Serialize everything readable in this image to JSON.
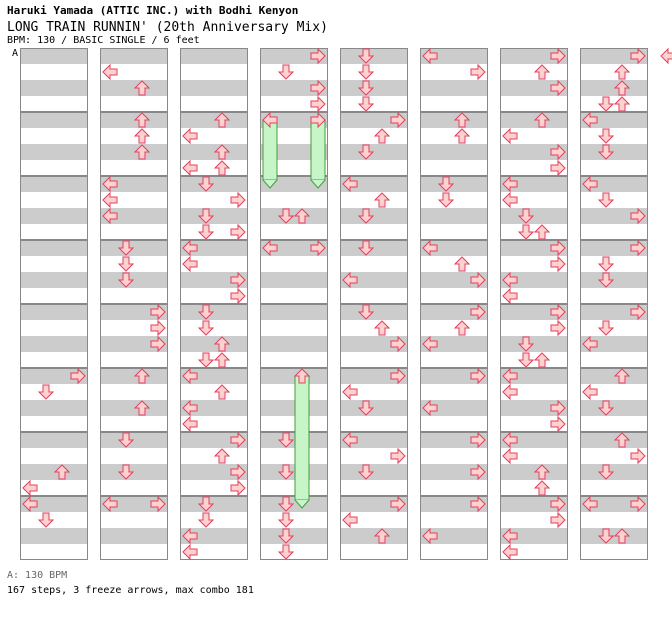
{
  "header": {
    "artist": "Haruki Yamada (ATTIC INC.) with Bodhi Kenyon",
    "title": "LONG TRAIN RUNNIN' (20th Anniversary Mix)",
    "meta": "BPM: 130 / BASIC SINGLE / 6 feet",
    "bpm_marker": "A"
  },
  "footer": {
    "bpm_legend": "A: 130 BPM",
    "stats": "167 steps, 3 freeze arrows, max combo 181"
  },
  "colors": {
    "arrow_fill": "#ffd0d0",
    "arrow_stroke": "#e0405a",
    "freeze_fill": "#c8f5c8",
    "freeze_stroke": "#40a040",
    "stripe_gray": "#cccccc",
    "bpm_line": "#3b82f6"
  },
  "columns": [
    {
      "measures": [
        [],
        [],
        [],
        [],
        [],
        [
          [
            0,
            "right"
          ],
          [
            1,
            "down"
          ]
        ],
        [
          [
            2,
            "up"
          ],
          [
            3,
            "left"
          ]
        ],
        [
          [
            0,
            "left"
          ],
          [
            1,
            "down"
          ]
        ]
      ]
    },
    {
      "measures": [
        [
          [
            1,
            "left"
          ],
          [
            2,
            "up"
          ]
        ],
        [
          [
            0,
            "up"
          ],
          [
            1,
            "up"
          ],
          [
            2,
            "up"
          ]
        ],
        [
          [
            0,
            "left"
          ],
          [
            1,
            "left"
          ],
          [
            2,
            "left"
          ]
        ],
        [
          [
            0,
            "down"
          ],
          [
            1,
            "down"
          ],
          [
            2,
            "down"
          ]
        ],
        [
          [
            0,
            "right"
          ],
          [
            1,
            "right"
          ],
          [
            2,
            "right"
          ]
        ],
        [
          [
            0,
            "up"
          ],
          [
            2,
            "up"
          ]
        ],
        [
          [
            0,
            "down"
          ],
          [
            2,
            "down"
          ]
        ],
        [
          [
            0,
            "left"
          ],
          [
            0,
            "right"
          ]
        ]
      ]
    },
    {
      "measures": [
        [],
        [
          [
            0,
            "up"
          ],
          [
            1,
            "left"
          ],
          [
            2,
            "up"
          ],
          [
            3,
            "left"
          ],
          [
            3,
            "up"
          ]
        ],
        [
          [
            0,
            "down"
          ],
          [
            1,
            "right"
          ],
          [
            2,
            "down"
          ],
          [
            3,
            "down"
          ],
          [
            3,
            "right"
          ]
        ],
        [
          [
            0,
            "left"
          ],
          [
            1,
            "left"
          ],
          [
            2,
            "right"
          ],
          [
            3,
            "right"
          ]
        ],
        [
          [
            0,
            "down"
          ],
          [
            1,
            "down"
          ],
          [
            2,
            "up"
          ],
          [
            3,
            "down"
          ],
          [
            3,
            "up"
          ]
        ],
        [
          [
            0,
            "left"
          ],
          [
            1,
            "up"
          ],
          [
            2,
            "left"
          ],
          [
            3,
            "left"
          ]
        ],
        [
          [
            0,
            "right"
          ],
          [
            1,
            "up"
          ],
          [
            2,
            "right"
          ],
          [
            3,
            "right"
          ]
        ],
        [
          [
            0,
            "down"
          ],
          [
            1,
            "down"
          ],
          [
            2,
            "left"
          ],
          [
            3,
            "left"
          ]
        ]
      ]
    },
    {
      "measures": [
        [
          [
            0,
            "right"
          ],
          [
            1,
            "down"
          ],
          [
            2,
            "right"
          ],
          [
            3,
            "right"
          ]
        ],
        [
          [
            0,
            "left"
          ],
          [
            0,
            "right"
          ]
        ],
        [
          [
            2,
            "down"
          ],
          [
            2,
            "up"
          ]
        ],
        [
          [
            0,
            "left"
          ],
          [
            0,
            "right"
          ]
        ],
        [],
        [
          [
            0,
            "up"
          ]
        ],
        [
          [
            0,
            "down"
          ],
          [
            2,
            "down"
          ]
        ],
        [
          [
            0,
            "down"
          ],
          [
            1,
            "down"
          ],
          [
            2,
            "down"
          ],
          [
            3,
            "down"
          ]
        ]
      ]
    },
    {
      "measures": [
        [
          [
            0,
            "down"
          ],
          [
            1,
            "down"
          ],
          [
            2,
            "down"
          ],
          [
            3,
            "down"
          ]
        ],
        [
          [
            0,
            "right"
          ],
          [
            1,
            "up"
          ],
          [
            2,
            "down"
          ]
        ],
        [
          [
            0,
            "left"
          ],
          [
            1,
            "up"
          ],
          [
            2,
            "down"
          ]
        ],
        [
          [
            0,
            "down"
          ],
          [
            2,
            "left"
          ]
        ],
        [
          [
            0,
            "down"
          ],
          [
            1,
            "up"
          ],
          [
            2,
            "right"
          ]
        ],
        [
          [
            0,
            "right"
          ],
          [
            1,
            "left"
          ],
          [
            2,
            "down"
          ]
        ],
        [
          [
            0,
            "left"
          ],
          [
            1,
            "right"
          ],
          [
            2,
            "down"
          ]
        ],
        [
          [
            0,
            "right"
          ],
          [
            1,
            "left"
          ],
          [
            2,
            "up"
          ]
        ]
      ]
    },
    {
      "measures": [
        [
          [
            0,
            "left"
          ],
          [
            1,
            "right"
          ]
        ],
        [
          [
            0,
            "up"
          ],
          [
            1,
            "up"
          ]
        ],
        [
          [
            0,
            "down"
          ],
          [
            1,
            "down"
          ]
        ],
        [
          [
            0,
            "left"
          ],
          [
            1,
            "up"
          ],
          [
            2,
            "right"
          ]
        ],
        [
          [
            0,
            "right"
          ],
          [
            1,
            "up"
          ],
          [
            2,
            "left"
          ]
        ],
        [
          [
            0,
            "right"
          ],
          [
            2,
            "left"
          ]
        ],
        [
          [
            0,
            "right"
          ],
          [
            2,
            "right"
          ]
        ],
        [
          [
            0,
            "right"
          ],
          [
            2,
            "left"
          ]
        ]
      ]
    },
    {
      "measures": [
        [
          [
            0,
            "right"
          ],
          [
            1,
            "up"
          ],
          [
            2,
            "right"
          ]
        ],
        [
          [
            0,
            "up"
          ],
          [
            1,
            "left"
          ],
          [
            2,
            "right"
          ],
          [
            3,
            "right"
          ]
        ],
        [
          [
            0,
            "left"
          ],
          [
            1,
            "left"
          ],
          [
            2,
            "down"
          ],
          [
            3,
            "down"
          ],
          [
            3,
            "up"
          ]
        ],
        [
          [
            0,
            "right"
          ],
          [
            1,
            "right"
          ],
          [
            2,
            "left"
          ],
          [
            3,
            "left"
          ]
        ],
        [
          [
            0,
            "right"
          ],
          [
            1,
            "right"
          ],
          [
            2,
            "down"
          ],
          [
            3,
            "down"
          ],
          [
            3,
            "up"
          ]
        ],
        [
          [
            0,
            "left"
          ],
          [
            1,
            "left"
          ],
          [
            2,
            "right"
          ],
          [
            3,
            "right"
          ]
        ],
        [
          [
            0,
            "left"
          ],
          [
            1,
            "left"
          ],
          [
            2,
            "up"
          ],
          [
            3,
            "up"
          ]
        ],
        [
          [
            0,
            "right"
          ],
          [
            1,
            "right"
          ],
          [
            2,
            "left"
          ],
          [
            3,
            "left"
          ]
        ]
      ]
    },
    {
      "measures": [
        [
          [
            0,
            "right"
          ],
          [
            1,
            "up"
          ],
          [
            2,
            "up"
          ],
          [
            3,
            "down"
          ],
          [
            3,
            "up"
          ]
        ],
        [
          [
            0,
            "left"
          ],
          [
            1,
            "down"
          ],
          [
            2,
            "down"
          ]
        ],
        [
          [
            0,
            "left"
          ],
          [
            1,
            "down"
          ],
          [
            2,
            "right"
          ]
        ],
        [
          [
            0,
            "right"
          ],
          [
            1,
            "down"
          ],
          [
            2,
            "down"
          ]
        ],
        [
          [
            0,
            "right"
          ],
          [
            1,
            "down"
          ],
          [
            2,
            "left"
          ]
        ],
        [
          [
            0,
            "up"
          ],
          [
            1,
            "left"
          ],
          [
            2,
            "down"
          ]
        ],
        [
          [
            0,
            "up"
          ],
          [
            1,
            "right"
          ],
          [
            2,
            "down"
          ]
        ],
        [
          [
            0,
            "left"
          ],
          [
            0,
            "right"
          ],
          [
            2,
            "down"
          ],
          [
            2,
            "up"
          ]
        ]
      ]
    }
  ],
  "freezes": [
    {
      "column": 3,
      "lane": "left",
      "from_measure": 1,
      "to_measure": 2
    },
    {
      "column": 3,
      "lane": "right",
      "from_measure": 1,
      "to_measure": 2
    },
    {
      "column": 3,
      "lane": "center",
      "from_measure": 5,
      "to_measure": 7
    }
  ],
  "trailing_arrow": "left"
}
